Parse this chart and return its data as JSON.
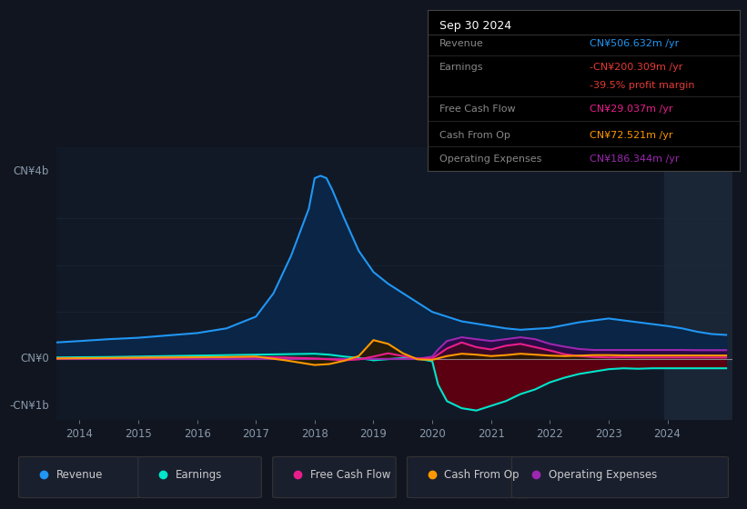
{
  "bg_color": "#111520",
  "chart_bg_color": "#111927",
  "ylim": [
    -1300000000.0,
    4500000000.0
  ],
  "xlim_start": 2013.6,
  "xlim_end": 2025.1,
  "xtick_years": [
    2014,
    2015,
    2016,
    2017,
    2018,
    2019,
    2020,
    2021,
    2022,
    2023,
    2024
  ],
  "highlight_x_start": 2023.95,
  "highlight_x_end": 2025.1,
  "revenue_color": "#2196f3",
  "revenue_fill": "#0a2545",
  "earnings_color": "#00e5cc",
  "earnings_fill_neg": "#5a0010",
  "fcf_color": "#e91e8c",
  "opex_color": "#9c27b0",
  "cashfromop_color": "#ff9800",
  "zero_line_color": "#cccccc",
  "grid_color": "#1e2a3a",
  "label_color": "#8899aa",
  "revenue_x": [
    2013.6,
    2014.0,
    2014.5,
    2015.0,
    2015.5,
    2016.0,
    2016.5,
    2017.0,
    2017.3,
    2017.6,
    2017.9,
    2018.0,
    2018.1,
    2018.2,
    2018.3,
    2018.5,
    2018.75,
    2019.0,
    2019.25,
    2019.5,
    2019.75,
    2020.0,
    2020.25,
    2020.5,
    2020.75,
    2021.0,
    2021.25,
    2021.5,
    2021.75,
    2022.0,
    2022.25,
    2022.5,
    2022.75,
    2023.0,
    2023.25,
    2023.5,
    2023.75,
    2024.0,
    2024.25,
    2024.5,
    2024.75,
    2025.0
  ],
  "revenue_y": [
    350000000.0,
    380000000.0,
    420000000.0,
    450000000.0,
    500000000.0,
    550000000.0,
    650000000.0,
    900000000.0,
    1400000000.0,
    2200000000.0,
    3200000000.0,
    3850000000.0,
    3900000000.0,
    3850000000.0,
    3600000000.0,
    3000000000.0,
    2300000000.0,
    1850000000.0,
    1600000000.0,
    1400000000.0,
    1200000000.0,
    1000000000.0,
    900000000.0,
    800000000.0,
    750000000.0,
    700000000.0,
    650000000.0,
    620000000.0,
    640000000.0,
    660000000.0,
    720000000.0,
    780000000.0,
    820000000.0,
    860000000.0,
    820000000.0,
    780000000.0,
    740000000.0,
    700000000.0,
    650000000.0,
    580000000.0,
    530000000.0,
    510000000.0
  ],
  "earnings_x": [
    2013.6,
    2014.0,
    2014.5,
    2015.0,
    2015.5,
    2016.0,
    2016.5,
    2017.0,
    2017.5,
    2018.0,
    2018.25,
    2018.5,
    2018.75,
    2019.0,
    2019.25,
    2019.5,
    2019.75,
    2020.0,
    2020.1,
    2020.25,
    2020.5,
    2020.75,
    2021.0,
    2021.25,
    2021.5,
    2021.75,
    2022.0,
    2022.25,
    2022.5,
    2022.75,
    2023.0,
    2023.25,
    2023.5,
    2023.75,
    2024.0,
    2024.25,
    2024.5,
    2024.75,
    2025.0
  ],
  "earnings_y": [
    30000000.0,
    35000000.0,
    40000000.0,
    50000000.0,
    60000000.0,
    70000000.0,
    80000000.0,
    90000000.0,
    100000000.0,
    110000000.0,
    90000000.0,
    50000000.0,
    20000000.0,
    -30000000.0,
    -5000000.0,
    20000000.0,
    5000000.0,
    -50000000.0,
    -550000000.0,
    -900000000.0,
    -1050000000.0,
    -1100000000.0,
    -1000000000.0,
    -900000000.0,
    -750000000.0,
    -650000000.0,
    -500000000.0,
    -400000000.0,
    -320000000.0,
    -270000000.0,
    -220000000.0,
    -200000000.0,
    -210000000.0,
    -200000000.0,
    -200000000.0,
    -200000000.0,
    -200000000.0,
    -200000000.0,
    -200000000.0
  ],
  "fcf_x": [
    2013.6,
    2014.0,
    2014.5,
    2015.0,
    2015.5,
    2016.0,
    2016.5,
    2017.0,
    2017.5,
    2018.0,
    2018.25,
    2018.5,
    2018.75,
    2019.0,
    2019.25,
    2019.5,
    2019.75,
    2020.0,
    2020.25,
    2020.5,
    2020.75,
    2021.0,
    2021.25,
    2021.5,
    2021.75,
    2022.0,
    2022.25,
    2022.5,
    2022.75,
    2023.0,
    2023.25,
    2023.5,
    2023.75,
    2024.0,
    2024.25,
    2024.5,
    2024.75,
    2025.0
  ],
  "fcf_y": [
    10000000.0,
    12000000.0,
    15000000.0,
    20000000.0,
    25000000.0,
    30000000.0,
    35000000.0,
    40000000.0,
    30000000.0,
    10000000.0,
    -10000000.0,
    -30000000.0,
    -10000000.0,
    50000000.0,
    120000000.0,
    60000000.0,
    10000000.0,
    10000000.0,
    220000000.0,
    350000000.0,
    250000000.0,
    200000000.0,
    280000000.0,
    320000000.0,
    250000000.0,
    180000000.0,
    100000000.0,
    60000000.0,
    40000000.0,
    30000000.0,
    35000000.0,
    30000000.0,
    30000000.0,
    30000000.0,
    29000000.0,
    29000000.0,
    29000000.0,
    29000000.0
  ],
  "cashfromop_x": [
    2013.6,
    2014.0,
    2014.5,
    2015.0,
    2015.5,
    2016.0,
    2016.5,
    2017.0,
    2017.5,
    2018.0,
    2018.25,
    2018.5,
    2018.75,
    2019.0,
    2019.25,
    2019.5,
    2019.75,
    2020.0,
    2020.25,
    2020.5,
    2020.75,
    2021.0,
    2021.25,
    2021.5,
    2021.75,
    2022.0,
    2022.25,
    2022.5,
    2022.75,
    2023.0,
    2023.25,
    2023.5,
    2023.75,
    2024.0,
    2024.25,
    2024.5,
    2024.75,
    2025.0
  ],
  "cashfromop_y": [
    10000000.0,
    15000000.0,
    20000000.0,
    25000000.0,
    30000000.0,
    35000000.0,
    40000000.0,
    50000000.0,
    -30000000.0,
    -130000000.0,
    -110000000.0,
    -40000000.0,
    60000000.0,
    400000000.0,
    320000000.0,
    120000000.0,
    -10000000.0,
    -20000000.0,
    60000000.0,
    110000000.0,
    90000000.0,
    60000000.0,
    80000000.0,
    110000000.0,
    90000000.0,
    70000000.0,
    60000000.0,
    70000000.0,
    80000000.0,
    80000000.0,
    75000000.0,
    73000000.0,
    73000000.0,
    73000000.0,
    73000000.0,
    73000000.0,
    72000000.0,
    72000000.0
  ],
  "opex_x": [
    2013.6,
    2014.0,
    2014.5,
    2015.0,
    2015.5,
    2016.0,
    2016.5,
    2017.0,
    2017.5,
    2018.0,
    2018.25,
    2018.5,
    2018.75,
    2019.0,
    2019.25,
    2019.5,
    2019.75,
    2020.0,
    2020.1,
    2020.25,
    2020.5,
    2020.75,
    2021.0,
    2021.25,
    2021.5,
    2021.75,
    2022.0,
    2022.25,
    2022.5,
    2022.75,
    2023.0,
    2023.25,
    2023.5,
    2023.75,
    2024.0,
    2024.25,
    2024.5,
    2024.75,
    2025.0
  ],
  "opex_y": [
    0,
    0,
    0,
    0,
    0,
    0,
    0,
    0,
    0,
    0,
    0,
    0,
    0,
    0,
    0,
    0,
    0,
    50000000.0,
    200000000.0,
    380000000.0,
    460000000.0,
    420000000.0,
    380000000.0,
    420000000.0,
    460000000.0,
    420000000.0,
    320000000.0,
    260000000.0,
    210000000.0,
    190000000.0,
    190000000.0,
    190000000.0,
    190000000.0,
    190000000.0,
    190000000.0,
    190000000.0,
    186000000.0,
    186000000.0,
    186000000.0
  ],
  "legend_items": [
    {
      "label": "Revenue",
      "color": "#2196f3"
    },
    {
      "label": "Earnings",
      "color": "#00e5cc"
    },
    {
      "label": "Free Cash Flow",
      "color": "#e91e8c"
    },
    {
      "label": "Cash From Op",
      "color": "#ff9800"
    },
    {
      "label": "Operating Expenses",
      "color": "#9c27b0"
    }
  ],
  "info_title": "Sep 30 2024",
  "info_rows": [
    {
      "label": "Revenue",
      "value": "CN¥506.632m /yr",
      "value_color": "#2196f3",
      "has_divider": true
    },
    {
      "label": "Earnings",
      "value": "-CN¥200.309m /yr",
      "value_color": "#e53935",
      "has_divider": false
    },
    {
      "label": "",
      "value": "-39.5% profit margin",
      "value_color": "#e53935",
      "has_divider": true
    },
    {
      "label": "Free Cash Flow",
      "value": "CN¥29.037m /yr",
      "value_color": "#e91e8c",
      "has_divider": true
    },
    {
      "label": "Cash From Op",
      "value": "CN¥72.521m /yr",
      "value_color": "#ff9800",
      "has_divider": true
    },
    {
      "label": "Operating Expenses",
      "value": "CN¥186.344m /yr",
      "value_color": "#9c27b0",
      "has_divider": false
    }
  ]
}
